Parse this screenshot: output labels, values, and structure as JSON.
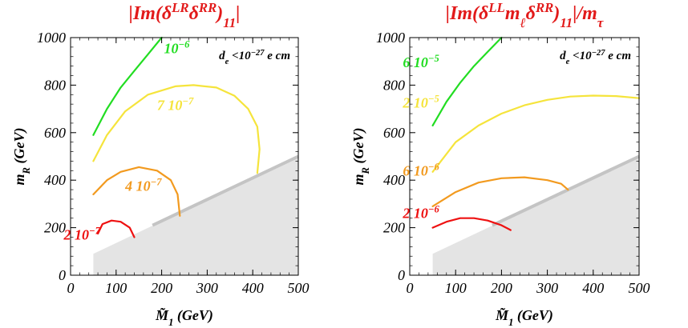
{
  "chart_data": [
    {
      "type": "line",
      "title": "|Im(δLRδRR)11|",
      "xlabel": "M̃1 (GeV)",
      "ylabel": "mR (GeV)",
      "xlim": [
        0,
        500
      ],
      "ylim": [
        0,
        1000
      ],
      "xticks": [
        "0",
        "100",
        "200",
        "300",
        "400",
        "500"
      ],
      "yticks": [
        "0",
        "200",
        "400",
        "600",
        "800",
        "1000"
      ],
      "annotation": "de<10^-27 e cm",
      "excluded_region_boundary": [
        [
          50,
          90
        ],
        [
          500,
          500
        ]
      ],
      "series": [
        {
          "label": "10^-6",
          "color": "#22dd22",
          "points": [
            [
              50,
              590
            ],
            [
              80,
              700
            ],
            [
              110,
              790
            ],
            [
              140,
              860
            ],
            [
              170,
              930
            ],
            [
              200,
              1000
            ]
          ]
        },
        {
          "label": "7 10^-7",
          "color": "#f5e43c",
          "points": [
            [
              50,
              480
            ],
            [
              80,
              590
            ],
            [
              120,
              690
            ],
            [
              170,
              760
            ],
            [
              230,
              795
            ],
            [
              270,
              800
            ],
            [
              320,
              790
            ],
            [
              360,
              755
            ],
            [
              390,
              700
            ],
            [
              410,
              625
            ],
            [
              415,
              530
            ],
            [
              410,
              430
            ]
          ]
        },
        {
          "label": "4 10^-7",
          "color": "#f29a1f",
          "points": [
            [
              50,
              340
            ],
            [
              80,
              400
            ],
            [
              110,
              435
            ],
            [
              150,
              455
            ],
            [
              190,
              440
            ],
            [
              220,
              400
            ],
            [
              235,
              340
            ],
            [
              240,
              250
            ]
          ]
        },
        {
          "label": "2 10^-7",
          "color": "#ee1111",
          "points": [
            [
              60,
              175
            ],
            [
              70,
              215
            ],
            [
              90,
              230
            ],
            [
              110,
              225
            ],
            [
              130,
              200
            ],
            [
              140,
              160
            ]
          ]
        }
      ]
    },
    {
      "type": "line",
      "title": "|Im(δLLmℓδRR)11|/mτ",
      "xlabel": "M̃1 (GeV)",
      "ylabel": "mR (GeV)",
      "xlim": [
        0,
        500
      ],
      "ylim": [
        0,
        1000
      ],
      "xticks": [
        "0",
        "100",
        "200",
        "300",
        "400",
        "500"
      ],
      "yticks": [
        "0",
        "200",
        "400",
        "600",
        "800",
        "1000"
      ],
      "annotation": "de<10^-27 e cm",
      "excluded_region_boundary": [
        [
          50,
          90
        ],
        [
          500,
          500
        ]
      ],
      "series": [
        {
          "label": "6 10^-5",
          "color": "#22dd22",
          "points": [
            [
              50,
              630
            ],
            [
              80,
              730
            ],
            [
              110,
              810
            ],
            [
              140,
              880
            ],
            [
              170,
              940
            ],
            [
              200,
              1000
            ]
          ]
        },
        {
          "label": "2 10^-5",
          "color": "#f5e43c",
          "points": [
            [
              50,
              435
            ],
            [
              100,
              560
            ],
            [
              150,
              630
            ],
            [
              200,
              680
            ],
            [
              250,
              715
            ],
            [
              300,
              738
            ],
            [
              350,
              752
            ],
            [
              400,
              756
            ],
            [
              450,
              754
            ],
            [
              500,
              745
            ]
          ]
        },
        {
          "label": "6 10^-6",
          "color": "#f29a1f",
          "points": [
            [
              50,
              290
            ],
            [
              100,
              350
            ],
            [
              150,
              390
            ],
            [
              200,
              408
            ],
            [
              250,
              412
            ],
            [
              300,
              400
            ],
            [
              330,
              385
            ],
            [
              345,
              360
            ]
          ]
        },
        {
          "label": "2 10^-6",
          "color": "#ee1111",
          "points": [
            [
              50,
              200
            ],
            [
              80,
              225
            ],
            [
              110,
              240
            ],
            [
              140,
              240
            ],
            [
              170,
              230
            ],
            [
              200,
              210
            ],
            [
              220,
              190
            ]
          ]
        }
      ]
    }
  ]
}
